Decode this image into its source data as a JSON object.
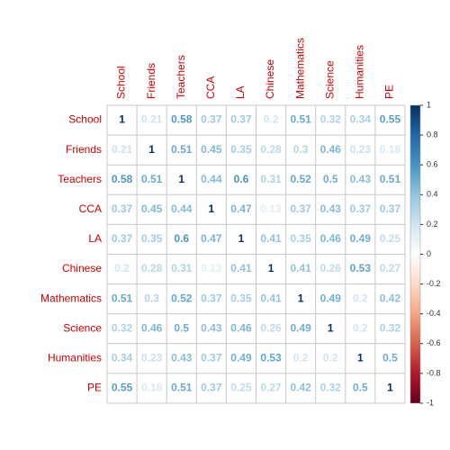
{
  "chart_data": {
    "type": "heatmap",
    "variables": [
      "School",
      "Friends",
      "Teachers",
      "CCA",
      "LA",
      "Chinese",
      "Mathematics",
      "Science",
      "Humanities",
      "PE"
    ],
    "values": [
      [
        1,
        0.21,
        0.58,
        0.37,
        0.37,
        0.2,
        0.51,
        0.32,
        0.34,
        0.55
      ],
      [
        0.21,
        1,
        0.51,
        0.45,
        0.35,
        0.28,
        0.3,
        0.46,
        0.23,
        0.18
      ],
      [
        0.58,
        0.51,
        1,
        0.44,
        0.6,
        0.31,
        0.52,
        0.5,
        0.43,
        0.51
      ],
      [
        0.37,
        0.45,
        0.44,
        1,
        0.47,
        0.13,
        0.37,
        0.43,
        0.37,
        0.37
      ],
      [
        0.37,
        0.35,
        0.6,
        0.47,
        1,
        0.41,
        0.35,
        0.46,
        0.49,
        0.25
      ],
      [
        0.2,
        0.28,
        0.31,
        0.13,
        0.41,
        1,
        0.41,
        0.26,
        0.53,
        0.27
      ],
      [
        0.51,
        0.3,
        0.52,
        0.37,
        0.35,
        0.41,
        1,
        0.49,
        0.2,
        0.42
      ],
      [
        0.32,
        0.46,
        0.5,
        0.43,
        0.46,
        0.26,
        0.49,
        1,
        0.2,
        0.32
      ],
      [
        0.34,
        0.23,
        0.43,
        0.37,
        0.49,
        0.53,
        0.2,
        0.2,
        1,
        0.5
      ],
      [
        0.55,
        0.18,
        0.51,
        0.37,
        0.25,
        0.27,
        0.42,
        0.32,
        0.5,
        1
      ]
    ],
    "clim": [
      -1,
      1
    ],
    "cticks": [
      1,
      0.8,
      0.6,
      0.4,
      0.2,
      0,
      -0.2,
      -0.4,
      -0.6,
      -0.8,
      -1
    ],
    "colorscale": [
      "#67001F",
      "#B2182B",
      "#D6604D",
      "#F4A582",
      "#FDDBC7",
      "#FFFFFF",
      "#D1E5F0",
      "#92C5DE",
      "#4393C3",
      "#2166AC",
      "#053061"
    ],
    "label_color": "#CC0000"
  }
}
